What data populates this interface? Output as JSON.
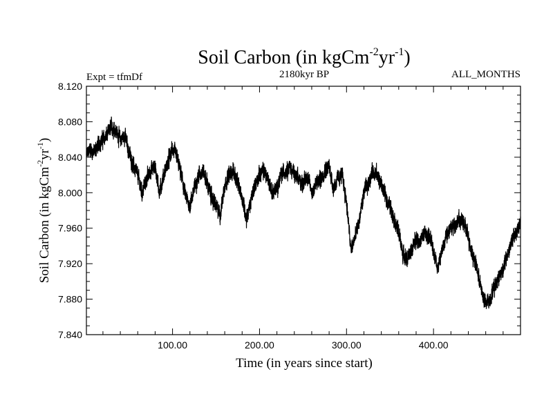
{
  "chart_data": {
    "type": "line",
    "title": "Soil Carbon (in kgCm",
    "title_sup1": "-2",
    "title_mid": "yr",
    "title_sup2": "-1",
    "title_end": ")",
    "subtitle": "2180kyr BP",
    "left_label": "Expt = tfmDf",
    "right_label": "ALL_MONTHS",
    "xlabel": "Time (in years since start)",
    "ylabel": "Soil Carbon (in kgCm",
    "ylabel_sup1": "-2",
    "ylabel_mid": "yr",
    "ylabel_sup2": "-1",
    "ylabel_end": ")",
    "xlim": [
      1,
      500
    ],
    "ylim": [
      7.84,
      8.12
    ],
    "xticks": [
      100,
      200,
      300,
      400
    ],
    "xtick_labels": [
      "100.00",
      "200.00",
      "300.00",
      "400.00"
    ],
    "yticks": [
      7.84,
      7.88,
      7.92,
      7.96,
      8.0,
      8.04,
      8.08,
      8.12
    ],
    "ytick_labels": [
      "7.840",
      "7.880",
      "7.920",
      "7.960",
      "8.000",
      "8.040",
      "8.080",
      "8.120"
    ],
    "series": [
      {
        "name": "soil_carbon",
        "color": "#000000",
        "x": [
          0,
          5,
          10,
          15,
          20,
          25,
          30,
          35,
          40,
          45,
          50,
          55,
          60,
          65,
          70,
          75,
          80,
          85,
          90,
          95,
          100,
          105,
          110,
          115,
          120,
          125,
          130,
          135,
          140,
          145,
          150,
          155,
          160,
          165,
          170,
          175,
          180,
          185,
          190,
          195,
          200,
          205,
          210,
          215,
          220,
          225,
          230,
          235,
          240,
          245,
          250,
          255,
          260,
          265,
          270,
          275,
          280,
          285,
          290,
          295,
          300,
          305,
          310,
          315,
          320,
          325,
          330,
          335,
          340,
          345,
          350,
          355,
          360,
          365,
          370,
          375,
          380,
          385,
          390,
          395,
          400,
          405,
          410,
          415,
          420,
          425,
          430,
          435,
          440,
          445,
          450,
          455,
          460,
          465,
          470,
          475,
          480,
          485,
          490,
          495,
          500
        ],
        "mid": [
          8.04,
          8.05,
          8.045,
          8.055,
          8.06,
          8.065,
          8.075,
          8.07,
          8.06,
          8.065,
          8.045,
          8.03,
          8.02,
          8.0,
          8.015,
          8.025,
          8.03,
          8.0,
          8.02,
          8.035,
          8.05,
          8.04,
          8.02,
          7.995,
          7.985,
          8.005,
          8.02,
          8.025,
          8.01,
          7.995,
          7.985,
          7.975,
          8.01,
          8.02,
          8.025,
          8.01,
          7.995,
          7.97,
          7.99,
          8.01,
          8.02,
          8.025,
          8.015,
          8.0,
          8.005,
          8.02,
          8.025,
          8.03,
          8.02,
          8.015,
          8.01,
          8.02,
          8.0,
          8.01,
          8.015,
          8.025,
          8.03,
          8.005,
          8.015,
          8.02,
          7.99,
          7.935,
          7.95,
          7.97,
          8.0,
          8.01,
          8.025,
          8.02,
          8.01,
          7.995,
          7.985,
          7.97,
          7.955,
          7.93,
          7.925,
          7.935,
          7.95,
          7.945,
          7.955,
          7.95,
          7.935,
          7.915,
          7.935,
          7.955,
          7.96,
          7.965,
          7.97,
          7.965,
          7.95,
          7.93,
          7.915,
          7.89,
          7.875,
          7.88,
          7.895,
          7.905,
          7.915,
          7.93,
          7.945,
          7.955,
          7.965
        ],
        "amplitude": [
          0.013,
          0.013,
          0.013,
          0.013,
          0.013,
          0.013,
          0.013,
          0.013,
          0.013,
          0.013,
          0.013,
          0.013,
          0.013,
          0.013,
          0.013,
          0.013,
          0.013,
          0.013,
          0.013,
          0.013,
          0.013,
          0.013,
          0.013,
          0.013,
          0.013,
          0.013,
          0.013,
          0.013,
          0.013,
          0.013,
          0.013,
          0.013,
          0.013,
          0.013,
          0.013,
          0.013,
          0.013,
          0.013,
          0.013,
          0.013,
          0.013,
          0.013,
          0.013,
          0.013,
          0.013,
          0.013,
          0.013,
          0.013,
          0.013,
          0.013,
          0.013,
          0.013,
          0.013,
          0.013,
          0.013,
          0.013,
          0.013,
          0.013,
          0.013,
          0.013,
          0.013,
          0.013,
          0.013,
          0.013,
          0.013,
          0.013,
          0.013,
          0.013,
          0.013,
          0.013,
          0.013,
          0.013,
          0.013,
          0.013,
          0.013,
          0.013,
          0.013,
          0.013,
          0.013,
          0.013,
          0.013,
          0.013,
          0.013,
          0.013,
          0.013,
          0.013,
          0.013,
          0.013,
          0.013,
          0.013,
          0.013,
          0.013,
          0.013,
          0.013,
          0.013,
          0.013,
          0.013,
          0.013,
          0.013,
          0.013,
          0.013
        ]
      }
    ]
  }
}
